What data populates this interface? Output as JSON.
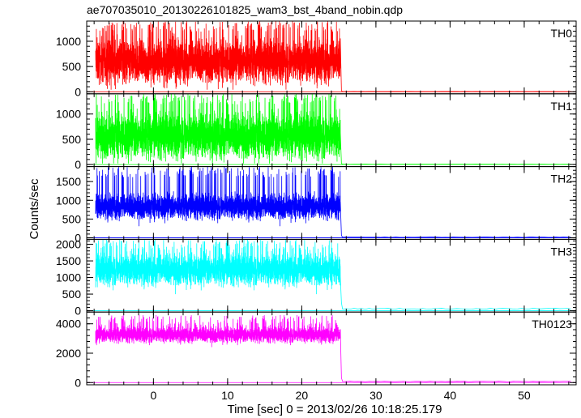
{
  "chart_data": {
    "type": "line",
    "title": "ae707035010_20130226101825_wam3_bst_4band_nobin.qdp",
    "xlabel": "Time [sec] 0 = 2013/02/26 10:18:25.179",
    "ylabel": "Counts/sec",
    "xlim": [
      -9,
      57
    ],
    "xticks": [
      0,
      10,
      20,
      30,
      40,
      50
    ],
    "burst_end": 25.2,
    "colors": {
      "frame": "#000000",
      "background": "#ffffff"
    },
    "panels": [
      {
        "name": "TH0",
        "color": "#ff0000",
        "ylim": [
          -40,
          1400
        ],
        "yticks": [
          0,
          500,
          1000
        ],
        "signal": {
          "mean": 600,
          "spread": 380,
          "min": 40,
          "max": 1400
        },
        "after": 5
      },
      {
        "name": "TH1",
        "color": "#00ff00",
        "ylim": [
          -40,
          1400
        ],
        "yticks": [
          0,
          500,
          1000
        ],
        "signal": {
          "mean": 560,
          "spread": 400,
          "min": 20,
          "max": 1400
        },
        "after": 5
      },
      {
        "name": "TH2",
        "color": "#0000ff",
        "ylim": [
          -40,
          1900
        ],
        "yticks": [
          0,
          500,
          1000,
          1500
        ],
        "signal": {
          "mean": 830,
          "spread": 300,
          "min": 100,
          "max": 1900
        },
        "after": 15
      },
      {
        "name": "TH3",
        "color": "#00ffff",
        "ylim": [
          -40,
          2150
        ],
        "yticks": [
          0,
          500,
          1000,
          1500,
          2000
        ],
        "signal": {
          "mean": 1230,
          "spread": 420,
          "min": 300,
          "max": 2150
        },
        "after": 60
      },
      {
        "name": "TH0123",
        "color": "#ff00ff",
        "ylim": [
          -150,
          4800
        ],
        "yticks": [
          0,
          2000,
          4000
        ],
        "signal": {
          "mean": 3250,
          "spread": 480,
          "min": 2300,
          "max": 4600
        },
        "after": 80
      }
    ]
  }
}
